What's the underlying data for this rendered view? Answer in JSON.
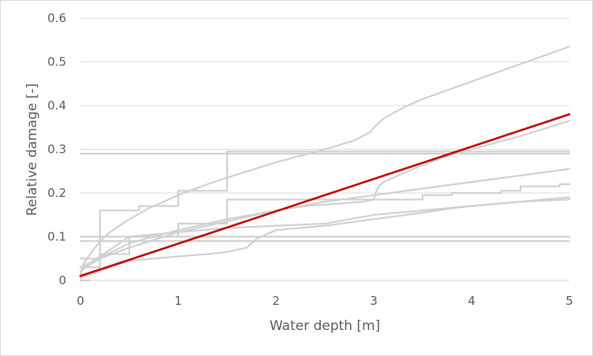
{
  "chart_data": {
    "type": "line",
    "title": "",
    "xlabel": "Water depth [m]",
    "ylabel": "Relative damage [-]",
    "xlim": [
      0,
      5
    ],
    "ylim": [
      0,
      0.6
    ],
    "xticks": [
      0,
      1,
      2,
      3,
      4,
      5
    ],
    "yticks": [
      0,
      0.1,
      0.2,
      0.3,
      0.4,
      0.5,
      0.6
    ],
    "xtick_labels": [
      "0",
      "1",
      "2",
      "3",
      "4",
      "5"
    ],
    "ytick_labels": [
      "0",
      "0.1",
      "0.2",
      "0.3",
      "0.4",
      "0.5",
      "0.6"
    ],
    "grid": "horizontal",
    "legend": "none",
    "colors": {
      "background_series": "#d0d0d0",
      "highlight": "#c00000",
      "grid": "#d9d9d9",
      "text": "#595959"
    },
    "series": [
      {
        "highlight": false,
        "x": [
          0,
          0.02,
          0.05,
          0.1,
          0.2,
          0.3,
          0.5,
          0.7,
          1.0,
          1.3,
          1.5,
          2.0,
          2.5,
          2.8,
          2.97,
          3.0,
          3.05,
          3.1,
          3.3,
          3.5,
          4.0,
          4.5,
          5.0
        ],
        "y": [
          0.01,
          0.03,
          0.045,
          0.06,
          0.09,
          0.11,
          0.14,
          0.165,
          0.195,
          0.22,
          0.235,
          0.27,
          0.3,
          0.32,
          0.34,
          0.35,
          0.36,
          0.37,
          0.395,
          0.415,
          0.455,
          0.495,
          0.535
        ]
      },
      {
        "highlight": false,
        "x": [
          0,
          0.2,
          0.2,
          0.6,
          0.6,
          1.0,
          1.0,
          1.5,
          1.5,
          5.0
        ],
        "y": [
          0.05,
          0.05,
          0.16,
          0.16,
          0.17,
          0.17,
          0.205,
          0.205,
          0.295,
          0.295
        ]
      },
      {
        "highlight": false,
        "x": [
          0,
          0.05,
          0.2,
          0.5,
          1.0,
          1.5,
          2.0,
          2.3,
          2.6,
          2.9,
          3.0,
          3.02,
          3.05,
          3.1,
          3.2,
          3.4,
          3.7,
          4.0,
          4.5,
          5.0
        ],
        "y": [
          0.02,
          0.03,
          0.05,
          0.075,
          0.11,
          0.135,
          0.16,
          0.17,
          0.175,
          0.18,
          0.185,
          0.2,
          0.215,
          0.225,
          0.235,
          0.255,
          0.28,
          0.3,
          0.33,
          0.365
        ]
      },
      {
        "highlight": false,
        "x": [
          0,
          0.5,
          1.0,
          1.5,
          2.0,
          2.5,
          3.0,
          3.5,
          4.0,
          4.5,
          5.0
        ],
        "y": [
          0.03,
          0.085,
          0.115,
          0.14,
          0.16,
          0.18,
          0.195,
          0.21,
          0.225,
          0.24,
          0.255
        ]
      },
      {
        "highlight": false,
        "x": [
          0,
          0.2,
          0.2,
          0.5,
          0.5,
          1.0,
          1.0,
          1.5,
          1.5,
          3.5,
          3.5,
          3.8,
          3.8,
          4.3,
          4.3,
          4.5,
          4.5,
          4.9,
          4.9,
          5.0
        ],
        "y": [
          0.03,
          0.03,
          0.06,
          0.06,
          0.1,
          0.1,
          0.13,
          0.13,
          0.185,
          0.185,
          0.195,
          0.195,
          0.2,
          0.2,
          0.205,
          0.205,
          0.215,
          0.215,
          0.22,
          0.22
        ]
      },
      {
        "highlight": false,
        "x": [
          0,
          0.5,
          1.0,
          1.3,
          1.5,
          1.7,
          1.8,
          1.85,
          2.0,
          2.5,
          3.0,
          3.5,
          3.8,
          4.0,
          4.5,
          5.0
        ],
        "y": [
          0.005,
          0.045,
          0.055,
          0.06,
          0.065,
          0.075,
          0.095,
          0.1,
          0.115,
          0.125,
          0.14,
          0.155,
          0.165,
          0.17,
          0.18,
          0.19
        ]
      },
      {
        "highlight": false,
        "x": [
          0,
          0.1,
          0.5,
          1.0,
          1.5,
          2.0,
          2.5,
          3.0,
          3.5,
          4.0,
          4.5,
          5.0
        ],
        "y": [
          0.02,
          0.04,
          0.1,
          0.11,
          0.12,
          0.125,
          0.13,
          0.15,
          0.16,
          0.17,
          0.18,
          0.185
        ]
      },
      {
        "highlight": false,
        "x": [
          0,
          5.0
        ],
        "y": [
          0.1,
          0.1
        ]
      },
      {
        "highlight": false,
        "x": [
          0,
          5.0
        ],
        "y": [
          0.09,
          0.09
        ]
      },
      {
        "highlight": false,
        "x": [
          0,
          5.0
        ],
        "y": [
          0.29,
          0.29
        ]
      },
      {
        "highlight": false,
        "x": [
          0,
          0.1
        ],
        "y": [
          0.0,
          0.0
        ]
      },
      {
        "highlight": true,
        "x": [
          0,
          5.0
        ],
        "y": [
          0.01,
          0.38
        ]
      }
    ]
  }
}
